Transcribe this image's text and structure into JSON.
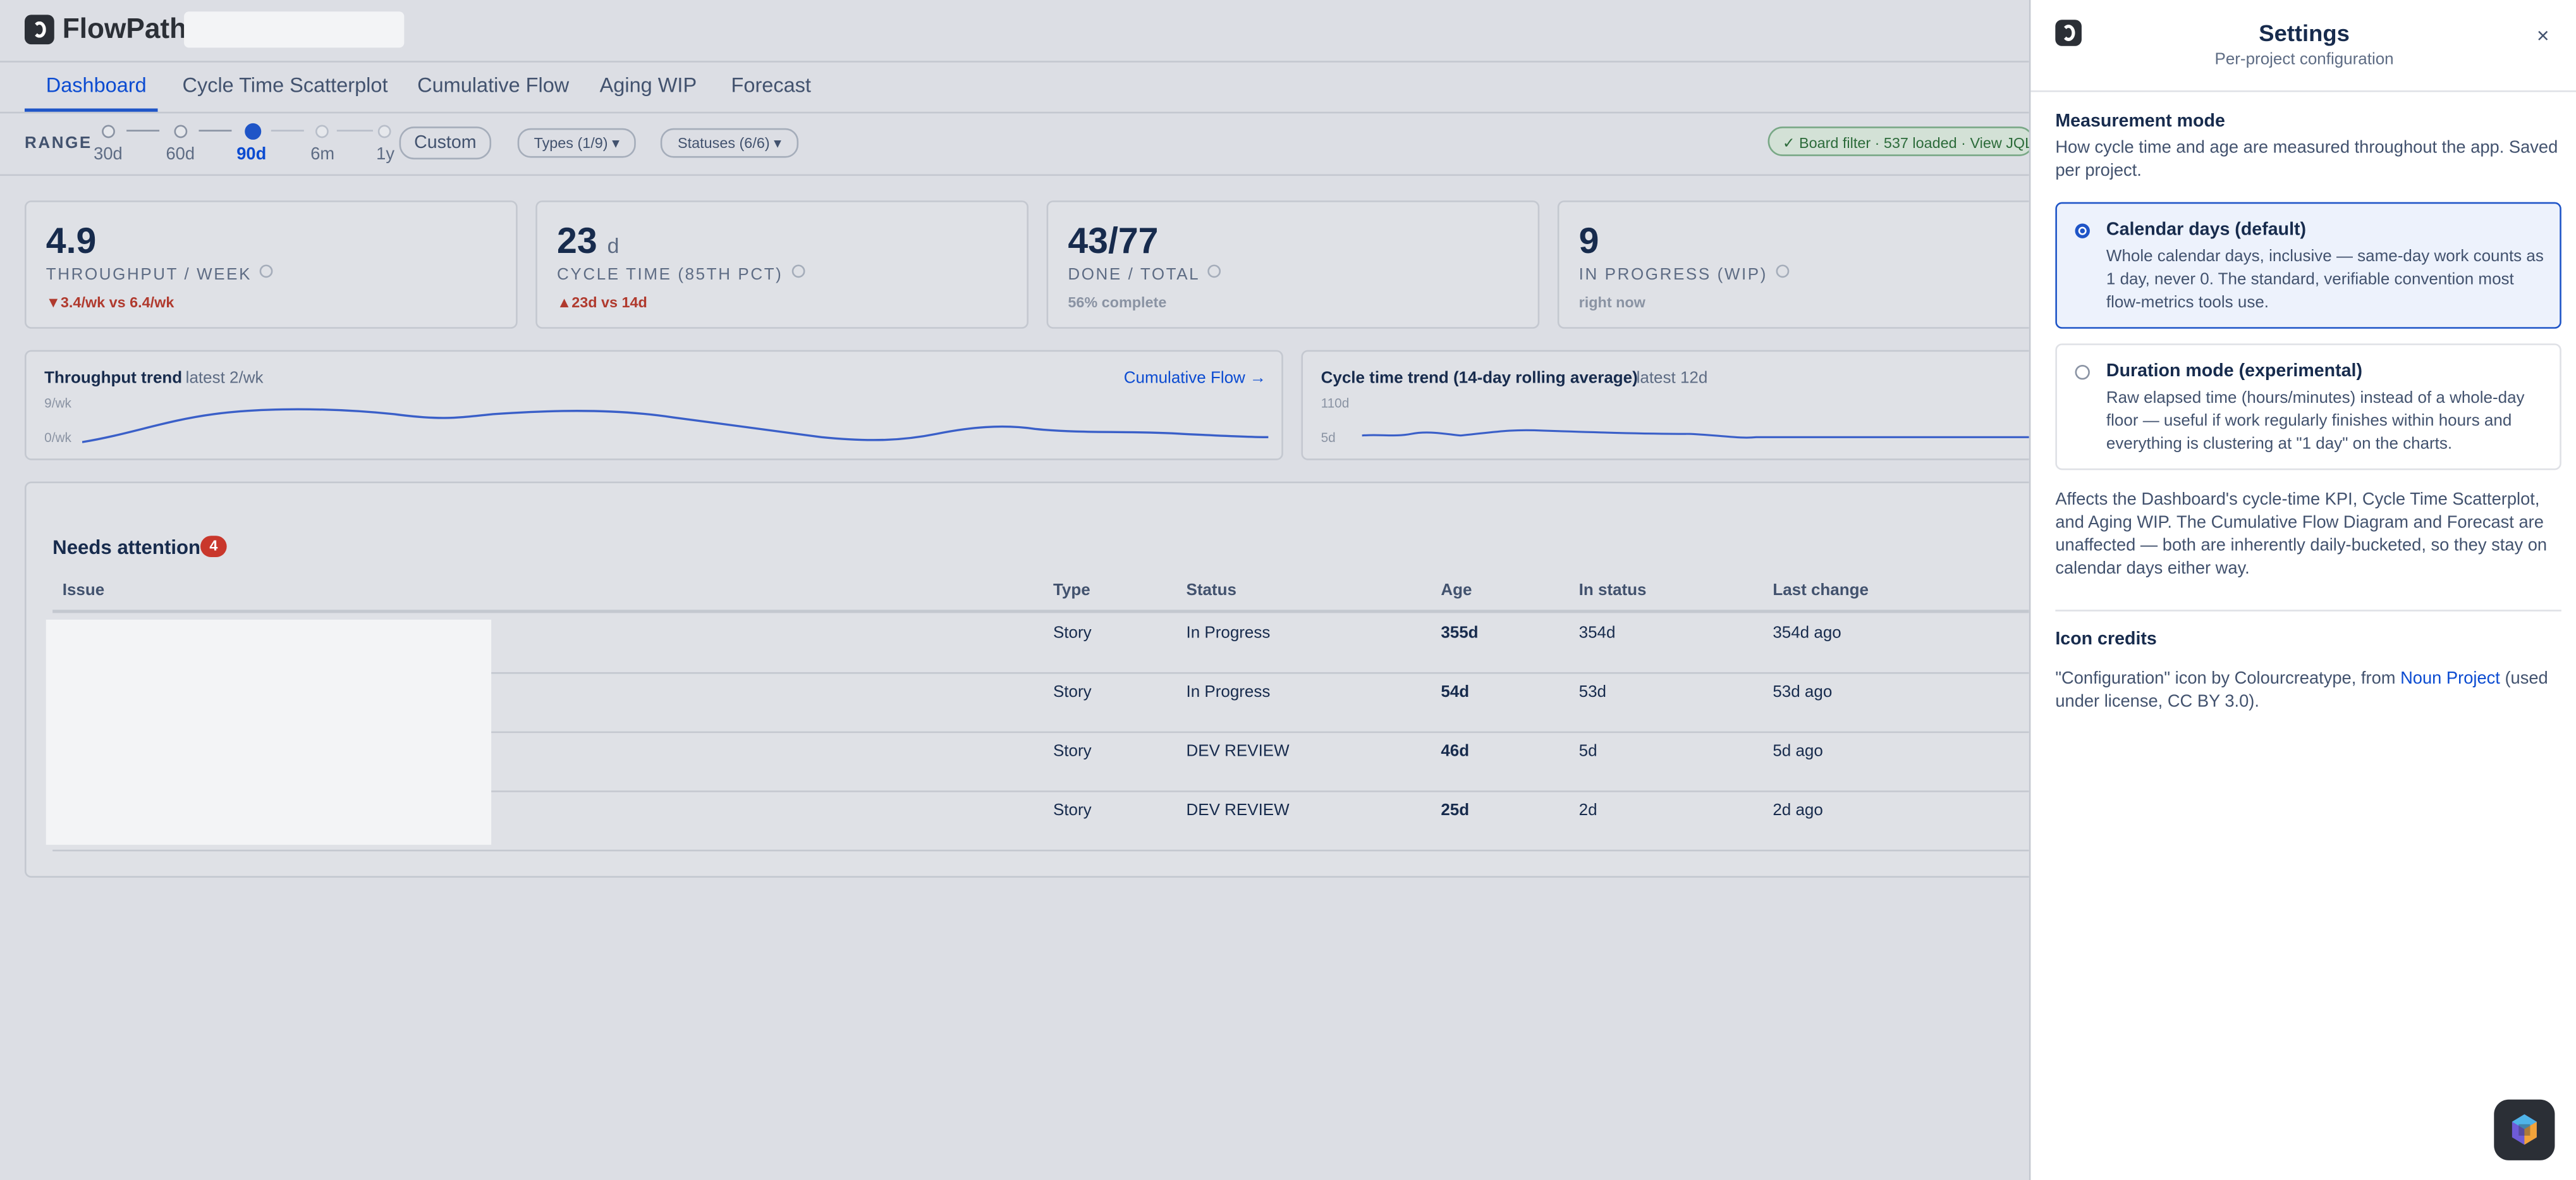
{
  "app": {
    "brand": "FlowPaths"
  },
  "tabs": [
    {
      "label": "Dashboard",
      "active": true
    },
    {
      "label": "Cycle Time Scatterplot"
    },
    {
      "label": "Cumulative Flow"
    },
    {
      "label": "Aging WIP"
    },
    {
      "label": "Forecast"
    }
  ],
  "range": {
    "label": "RANGE",
    "options": [
      "30d",
      "60d",
      "90d",
      "6m",
      "1y"
    ],
    "selected": "90d",
    "custom_label": "Custom",
    "types_filter": "Types (1/9) ▾",
    "statuses_filter": "Statuses (6/6) ▾",
    "board_filter": "✓ Board filter · 537 loaded · View JQL"
  },
  "kpis": [
    {
      "value": "4.9",
      "unit": "",
      "label": "THROUGHPUT / WEEK",
      "sub": "▼3.4/wk vs 6.4/wk",
      "status": "bad"
    },
    {
      "value": "23",
      "unit": "d",
      "label": "CYCLE TIME (85TH PCT)",
      "sub": "▲23d vs 14d",
      "status": "bad"
    },
    {
      "value": "43/77",
      "unit": "",
      "label": "DONE / TOTAL",
      "sub": "56% complete",
      "status": "neutral"
    },
    {
      "value": "9",
      "unit": "",
      "label": "IN PROGRESS (WIP)",
      "sub": "right now",
      "status": "neutral"
    }
  ],
  "trends": {
    "throughput": {
      "title": "Throughput trend",
      "latest": "latest 2/wk",
      "link": "Cumulative Flow →",
      "y_top": "9/wk",
      "y_bottom": "0/wk"
    },
    "cycle_time": {
      "title": "Cycle time trend (14-day rolling average)",
      "latest": "latest 12d",
      "y_top": "110d",
      "y_bottom": "5d"
    }
  },
  "attention": {
    "title": "Needs attention",
    "count": "4",
    "columns": [
      "Issue",
      "Type",
      "Status",
      "Age",
      "In status",
      "Last change"
    ],
    "rows": [
      {
        "type": "Story",
        "status": "In Progress",
        "age": "355d",
        "in_status": "354d",
        "last_change": "354d ago"
      },
      {
        "type": "Story",
        "status": "In Progress",
        "age": "54d",
        "in_status": "53d",
        "last_change": "53d ago"
      },
      {
        "type": "Story",
        "status": "DEV REVIEW",
        "age": "46d",
        "in_status": "5d",
        "last_change": "5d ago"
      },
      {
        "type": "Story",
        "status": "DEV REVIEW",
        "age": "25d",
        "in_status": "2d",
        "last_change": "2d ago"
      }
    ]
  },
  "settings": {
    "title": "Settings",
    "subtitle": "Per-project configuration",
    "close": "×",
    "measurement_heading": "Measurement mode",
    "measurement_desc": "How cycle time and age are measured throughout the app. Saved per project.",
    "options": [
      {
        "title": "Calendar days (default)",
        "desc": "Whole calendar days, inclusive — same-day work counts as 1 day, never 0. The standard, verifiable convention most flow-metrics tools use.",
        "selected": true
      },
      {
        "title": "Duration mode (experimental)",
        "desc": "Raw elapsed time (hours/minutes) instead of a whole-day floor — useful if work regularly finishes within hours and everything is clustering at \"1 day\" on the charts.",
        "selected": false
      }
    ],
    "affects_note": "Affects the Dashboard's cycle-time KPI, Cycle Time Scatterplot, and Aging WIP. The Cumulative Flow Diagram and Forecast are unaffected — both are inherently daily-bucketed, so they stay on calendar days either way.",
    "credits_heading": "Icon credits",
    "credits_pre": "\"Configuration\" icon by Colourcreatype, from ",
    "credits_link": "Noun Project",
    "credits_post": " (used under license, CC BY 3.0)."
  },
  "colors": {
    "accent": "#1f55c7",
    "danger": "#b03a2e",
    "badge": "#c9372c",
    "success": "#2c6b3a"
  },
  "icons": [
    "flowpaths-logo-icon",
    "info-icon",
    "close-icon",
    "radio-icon",
    "assistant-icon"
  ]
}
